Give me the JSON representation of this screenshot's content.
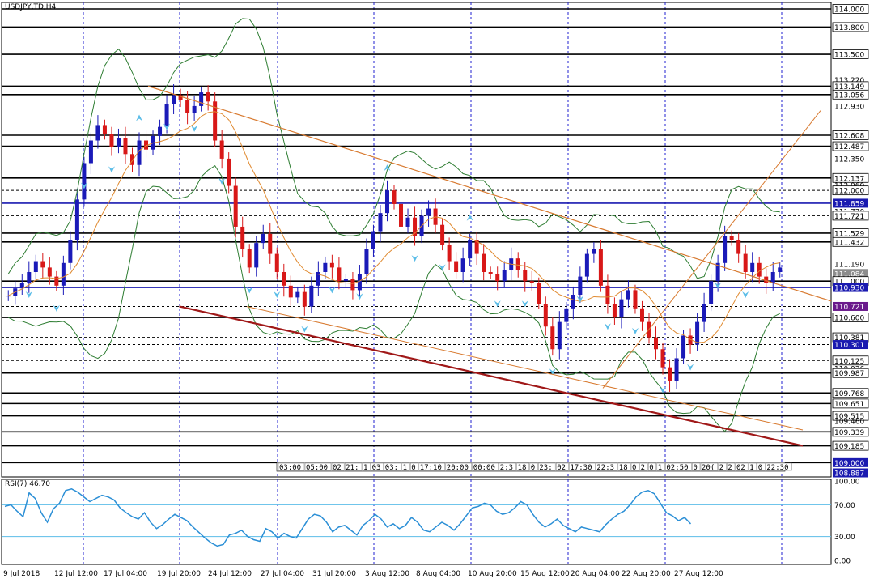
{
  "chart_data": [
    {
      "type": "candlestick",
      "title": "USDJPY,TD,H4",
      "y_range": [
        108.887,
        114.0
      ],
      "price_labels": [
        "114.000",
        "113.800",
        "113.500",
        "113.220",
        "113.149",
        "113.056",
        "112.930",
        "112.640",
        "112.608",
        "112.487",
        "112.350",
        "112.137",
        "112.060",
        "112.000",
        "111.859",
        "111.770",
        "111.721",
        "111.529",
        "111.432",
        "111.190",
        "111.084",
        "111.000",
        "110.930",
        "110.721",
        "110.600",
        "110.381",
        "110.301",
        "110.125",
        "110.036",
        "109.987",
        "109.768",
        "109.651",
        "109.515",
        "109.460",
        "109.339",
        "109.185",
        "109.000",
        "108.887"
      ],
      "solid_levels": [
        114.0,
        113.8,
        113.5,
        113.149,
        113.056,
        112.608,
        112.487,
        112.137,
        111.529,
        111.432,
        111.0,
        110.6,
        109.987,
        109.768,
        109.651,
        109.515,
        109.339,
        109.185,
        109.0
      ],
      "dashed_levels": [
        112.0,
        111.721,
        110.721,
        110.381,
        110.301,
        110.125
      ],
      "blue_levels": [
        111.859,
        110.93
      ],
      "highlighted_labels": {
        "111.859": "#1a1ab0",
        "110.930": "#1a1ab0",
        "110.721": "#6a1a8c",
        "110.301": "#1a1ab0",
        "109.000": "#1a1ab0",
        "108.887": "#1a1ab0",
        "111.084": "#8c8c8c"
      },
      "time_labels": [
        "9 Jul 2018",
        "12 Jul 12:00",
        "17 Jul 04:00",
        "19 Jul 20:00",
        "24 Jul 12:00",
        "27 Jul 04:00",
        "31 Jul 20:00",
        "3 Aug 12:00",
        "8 Aug 04:00",
        "10 Aug 20:00",
        "15 Aug 12:00",
        "20 Aug 04:00",
        "22 Aug 20:00",
        "27 Aug 12:00"
      ],
      "session_labels": [
        "03:00",
        "05:00",
        "02",
        "21:",
        "1",
        "03",
        "03:",
        "1",
        "0",
        "17:10",
        "20:00",
        "00:00",
        "2:3",
        "18",
        "0",
        "23:",
        "02",
        "17:30",
        "22:3",
        "18",
        "0",
        "2",
        "0",
        "1",
        "02:50",
        "0",
        "20(",
        "2",
        "2",
        "02",
        "1",
        "0",
        "22:30"
      ],
      "close_series": [
        110.84,
        110.92,
        110.98,
        111.1,
        111.22,
        111.15,
        111.05,
        110.95,
        111.2,
        111.45,
        111.9,
        112.3,
        112.55,
        112.72,
        112.62,
        112.48,
        112.58,
        112.4,
        112.28,
        112.55,
        112.45,
        112.6,
        112.7,
        112.95,
        113.05,
        113.0,
        112.85,
        112.93,
        113.08,
        112.98,
        112.55,
        112.35,
        112.05,
        111.6,
        111.35,
        111.15,
        111.42,
        111.52,
        111.3,
        111.1,
        110.95,
        110.82,
        110.88,
        110.72,
        110.95,
        111.1,
        111.2,
        111.15,
        111.0,
        111.02,
        110.9,
        111.08,
        111.35,
        111.55,
        111.75,
        112.0,
        111.85,
        111.6,
        111.7,
        111.5,
        111.72,
        111.8,
        111.62,
        111.4,
        111.22,
        111.1,
        111.25,
        111.45,
        111.3,
        111.1,
        111.08,
        111.0,
        111.12,
        111.25,
        111.12,
        111.0,
        110.98,
        110.75,
        110.5,
        110.25,
        110.55,
        110.7,
        110.85,
        111.05,
        111.3,
        111.35,
        110.95,
        110.75,
        110.6,
        110.8,
        110.9,
        110.7,
        110.55,
        110.38,
        110.25,
        110.05,
        109.9,
        110.15,
        110.4,
        110.3,
        110.55,
        110.75,
        111.0,
        111.2,
        111.5,
        111.45,
        111.3,
        111.1,
        111.2,
        111.05,
        110.98,
        111.1,
        111.15
      ],
      "series": [
        {
          "name": "",
          "kind": "bollinger_middle"
        },
        {
          "name": "",
          "kind": "bollinger_upper"
        },
        {
          "name": "",
          "kind": "bollinger_lower"
        }
      ],
      "trendlines": [
        {
          "from": {
            "t": 46,
            "p": 113.149
          },
          "to": {
            "t": 250,
            "p": 110.95
          }
        },
        {
          "from": {
            "t": 56,
            "p": 110.721
          },
          "to": {
            "t": 246,
            "p": 109.185
          }
        },
        {
          "from": {
            "t": 180,
            "p": 110.05
          },
          "to": {
            "t": 252,
            "p": 112.95
          }
        }
      ]
    },
    {
      "type": "line",
      "title": "RSI(7) 46.70",
      "y_range": [
        0,
        100
      ],
      "tick_labels": [
        "100.00",
        "70.00",
        "30.00",
        "0.00"
      ],
      "levels": [
        70,
        30
      ],
      "rsi_series": [
        68,
        70,
        62,
        55,
        85,
        78,
        60,
        48,
        65,
        72,
        88,
        90,
        86,
        80,
        74,
        78,
        82,
        80,
        76,
        66,
        60,
        55,
        52,
        60,
        48,
        40,
        45,
        52,
        58,
        54,
        50,
        42,
        35,
        28,
        22,
        18,
        20,
        32,
        34,
        38,
        30,
        26,
        24,
        40,
        36,
        28,
        34,
        30,
        28,
        40,
        52,
        58,
        56,
        48,
        36,
        42,
        44,
        38,
        32,
        44,
        50,
        58,
        52,
        42,
        46,
        40,
        44,
        54,
        48,
        38,
        36,
        42,
        48,
        44,
        38,
        46,
        56,
        66,
        68,
        72,
        70,
        62,
        58,
        60,
        66,
        74,
        70,
        58,
        48,
        42,
        46,
        52,
        44,
        40,
        36,
        42,
        40,
        38,
        36,
        45,
        52,
        58,
        62,
        70,
        80,
        86,
        88,
        84,
        72,
        60,
        56,
        50,
        54,
        46
      ],
      "rsi_current": 46.7
    }
  ]
}
